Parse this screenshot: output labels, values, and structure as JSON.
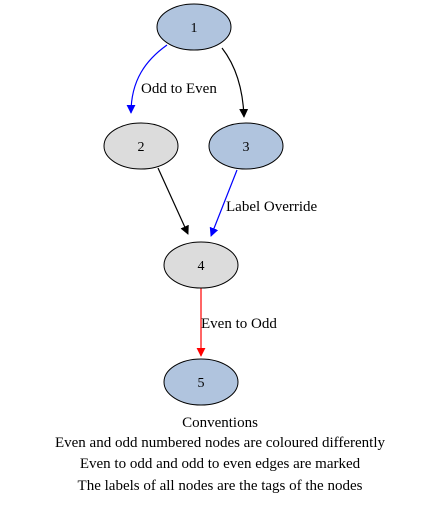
{
  "colors": {
    "odd_node_fill": "#b0c4de",
    "even_node_fill": "#dcdcdc",
    "node_stroke": "#000000",
    "edge_default": "#000000",
    "edge_odd_to_even": "#0000ff",
    "edge_even_to_odd": "#ff0000",
    "edge_override": "#0000ff"
  },
  "nodes": [
    {
      "id": "1",
      "label": "1",
      "parity": "odd"
    },
    {
      "id": "2",
      "label": "2",
      "parity": "even"
    },
    {
      "id": "3",
      "label": "3",
      "parity": "odd"
    },
    {
      "id": "4",
      "label": "4",
      "parity": "even"
    },
    {
      "id": "5",
      "label": "5",
      "parity": "odd"
    }
  ],
  "edges": [
    {
      "from": "1",
      "to": "2",
      "label": "Odd to Even",
      "color": "#0000ff"
    },
    {
      "from": "1",
      "to": "3",
      "label": "",
      "color": "#000000"
    },
    {
      "from": "2",
      "to": "4",
      "label": "",
      "color": "#000000"
    },
    {
      "from": "3",
      "to": "4",
      "label": "Label Override",
      "color": "#0000ff"
    },
    {
      "from": "4",
      "to": "5",
      "label": "Even to Odd",
      "color": "#ff0000"
    }
  ],
  "caption": {
    "title": "Conventions",
    "lines": [
      "Even and odd numbered nodes are coloured differently",
      "Even to odd and odd to even edges are marked",
      "The labels of all nodes are the tags of the nodes"
    ]
  }
}
